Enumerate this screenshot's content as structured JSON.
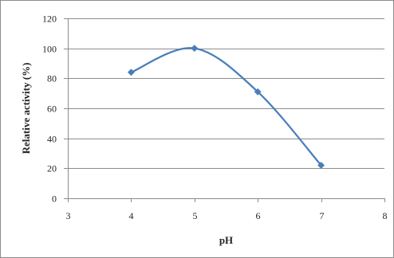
{
  "chart_data": {
    "type": "line",
    "title": "",
    "xlabel": "pH",
    "ylabel": "Relative activity (%)",
    "xlim": [
      3,
      8
    ],
    "ylim": [
      0,
      120
    ],
    "x_ticks": [
      3,
      4,
      5,
      6,
      7,
      8
    ],
    "y_ticks": [
      0,
      20,
      40,
      60,
      80,
      100,
      120
    ],
    "grid": "horizontal",
    "legend": "none",
    "smooth": true,
    "series": [
      {
        "color": "#4a7ebb",
        "x": [
          4,
          5,
          6,
          7
        ],
        "y": [
          84,
          100,
          71,
          22
        ]
      }
    ]
  }
}
